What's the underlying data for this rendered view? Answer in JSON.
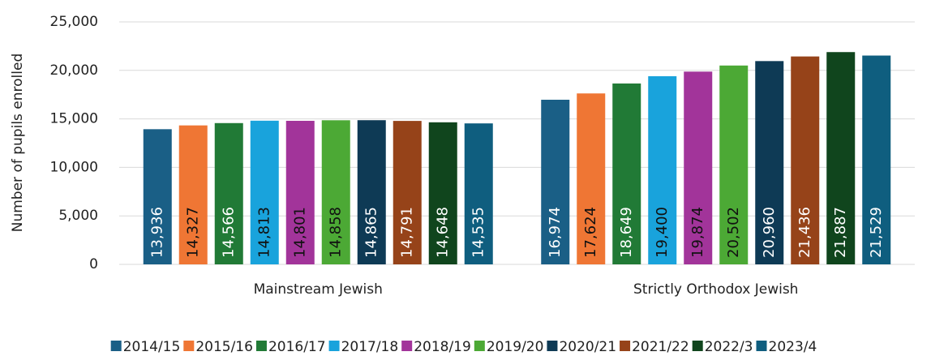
{
  "chart_data": {
    "type": "bar",
    "y_label": "Number of pupils enrolled",
    "categories": [
      "Mainstream Jewish",
      "Strictly Orthodox Jewish"
    ],
    "series": [
      {
        "name": "2014/15",
        "color": "#1a5f86",
        "values": [
          13936,
          16974
        ],
        "value_labels": [
          "13,936",
          "16,974"
        ]
      },
      {
        "name": "2015/16",
        "color": "#ef7634",
        "values": [
          14327,
          17624
        ],
        "value_labels": [
          "14,327",
          "17,624"
        ]
      },
      {
        "name": "2016/17",
        "color": "#217a36",
        "values": [
          14566,
          18649
        ],
        "value_labels": [
          "14,566",
          "18,649"
        ]
      },
      {
        "name": "2017/18",
        "color": "#19a3dc",
        "values": [
          14813,
          19400
        ],
        "value_labels": [
          "14,813",
          "19,400"
        ]
      },
      {
        "name": "2018/19",
        "color": "#a2349a",
        "values": [
          14801,
          19874
        ],
        "value_labels": [
          "14,801",
          "19,874"
        ]
      },
      {
        "name": "2019/20",
        "color": "#4ca935",
        "values": [
          14858,
          20502
        ],
        "value_labels": [
          "14,858",
          "20,502"
        ]
      },
      {
        "name": "2020/21",
        "color": "#0e3a55",
        "values": [
          14865,
          20960
        ],
        "value_labels": [
          "14,865",
          "20,960"
        ]
      },
      {
        "name": "2021/22",
        "color": "#964319",
        "values": [
          14791,
          21436
        ],
        "value_labels": [
          "14,791",
          "21,436"
        ]
      },
      {
        "name": "2022/3",
        "color": "#10451d",
        "values": [
          14648,
          21887
        ],
        "value_labels": [
          "14,648",
          "21,887"
        ]
      },
      {
        "name": "2023/4",
        "color": "#0f5e7f",
        "values": [
          14535,
          21529
        ],
        "value_labels": [
          "14,535",
          "21,529"
        ]
      }
    ],
    "ylim": [
      0,
      25000
    ],
    "yticks": [
      0,
      {
        "value": 5000,
        "label": "5,000"
      },
      {
        "value": 10000,
        "label": "10,000"
      },
      {
        "value": 15000,
        "label": "15,000"
      },
      {
        "value": 20000,
        "label": "20,000"
      },
      {
        "value": 25000,
        "label": "25,000"
      }
    ],
    "grid": true,
    "legend": "bottom"
  }
}
